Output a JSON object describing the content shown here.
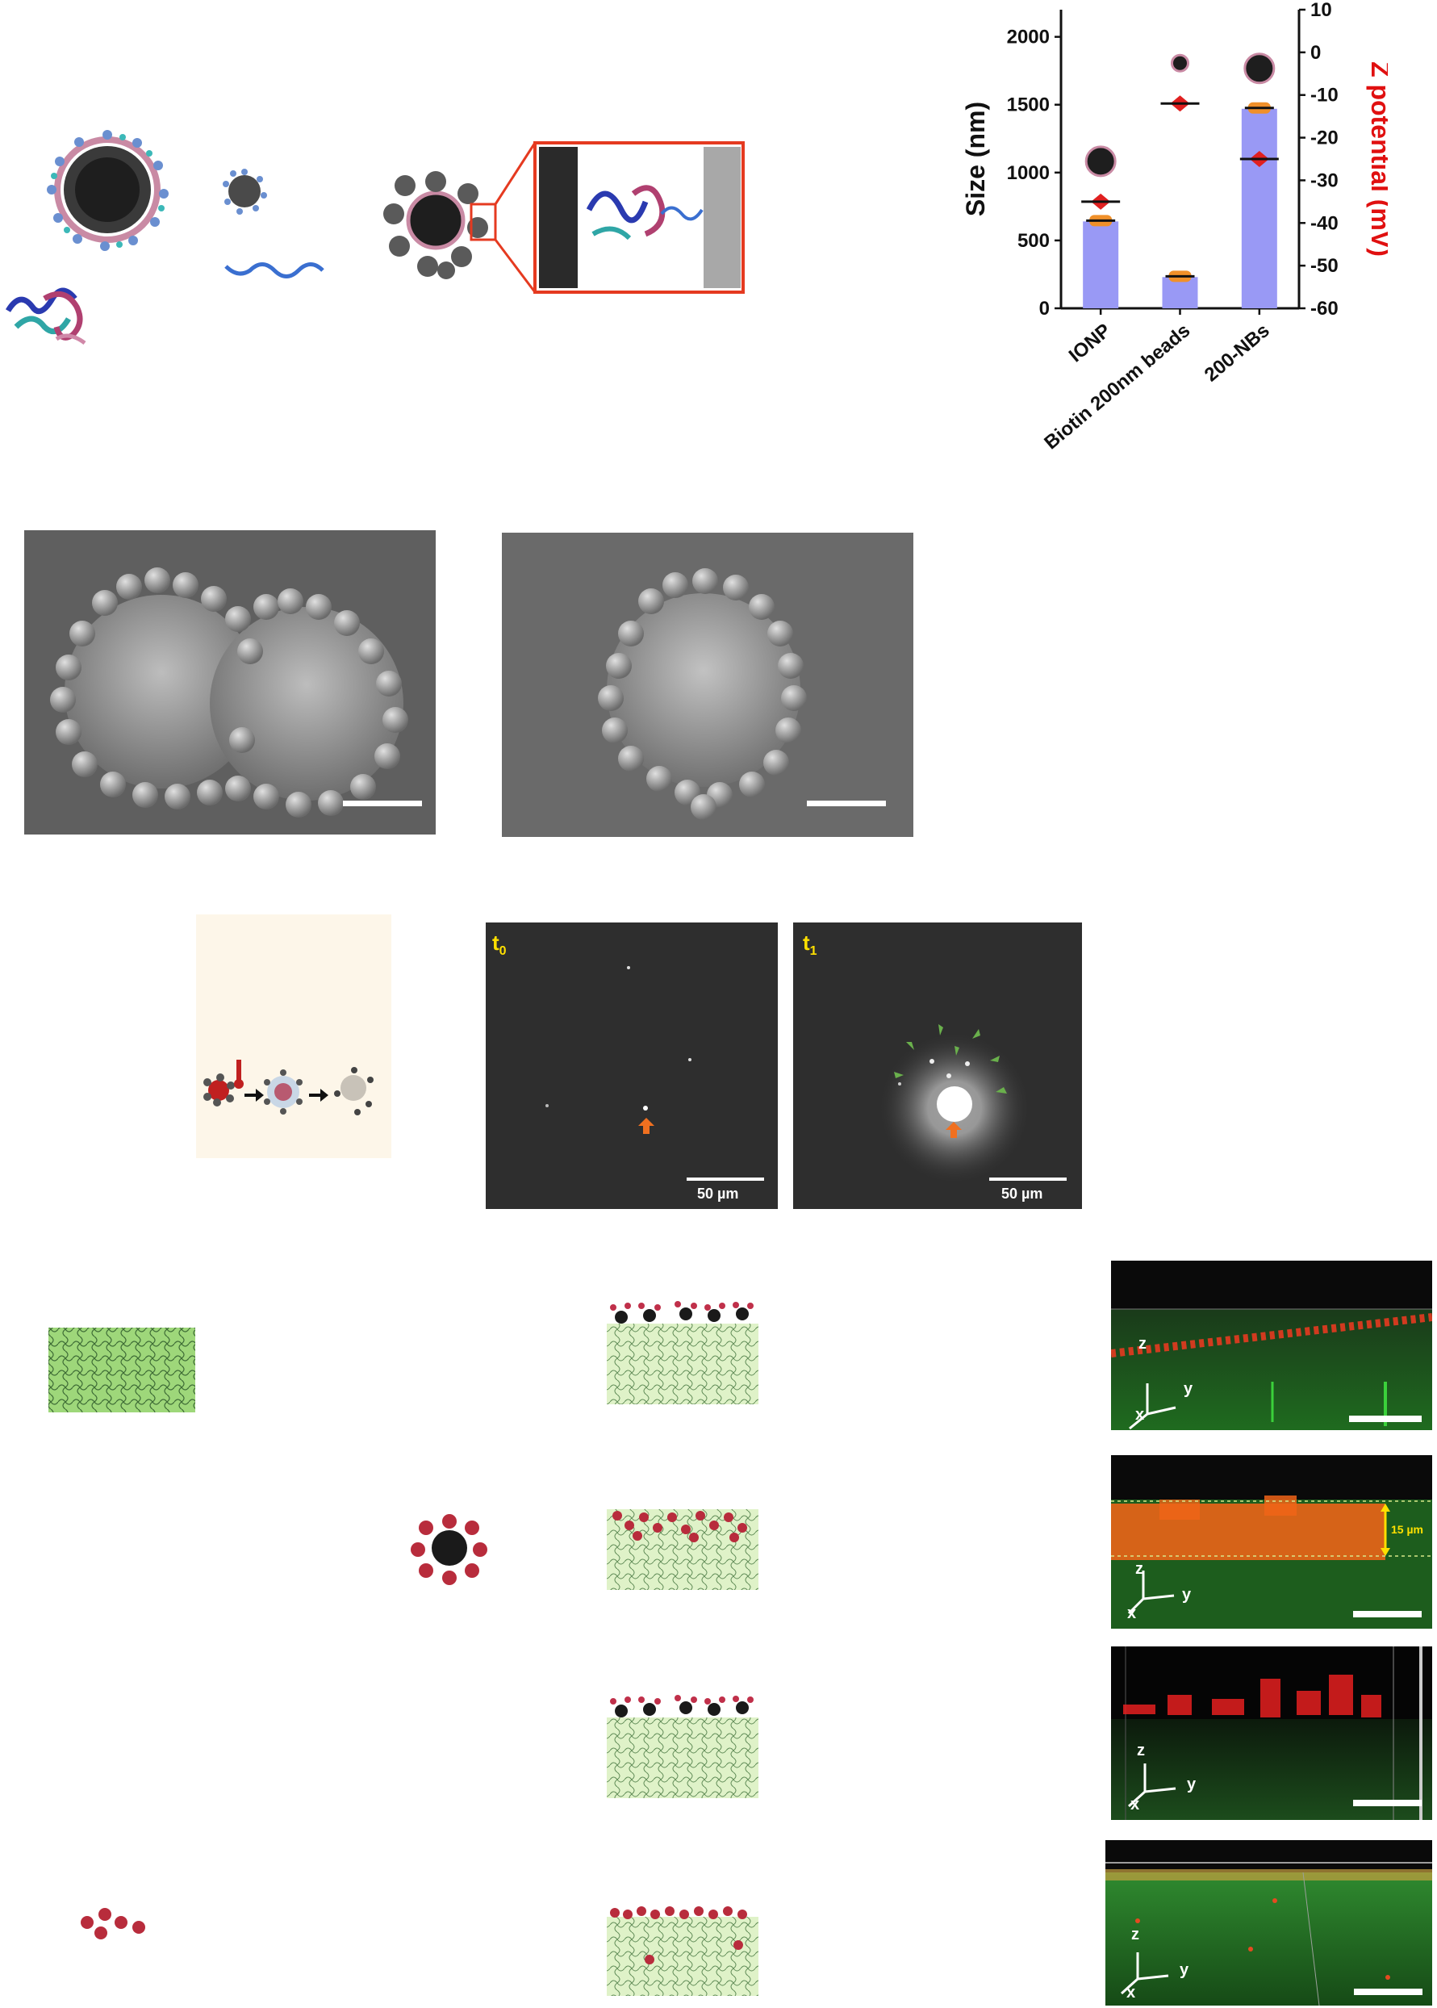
{
  "chart_data": {
    "type": "bar",
    "categories": [
      "IONP",
      "Biotin 200nm beads",
      "200-NBs"
    ],
    "values": [
      640,
      230,
      1470
    ],
    "zeta_values": [
      -35,
      -12,
      -25
    ],
    "ylabel": "Size (nm)",
    "y2label": "Z potential (mV)",
    "ylim": [
      0,
      2200
    ],
    "y2lim": [
      -60,
      10
    ],
    "yticks": [
      "0",
      "500",
      "1000",
      "1500",
      "2000"
    ],
    "y2ticks": [
      "10",
      "0",
      "-10",
      "-20",
      "-30",
      "-40",
      "-50",
      "-60"
    ],
    "colors": {
      "bar": "#9999f5",
      "size_marker": "#f0902a",
      "zeta_marker": "#e02020",
      "axis2": "#e01010"
    }
  },
  "microscopy": {
    "t0_label": "t",
    "t0_sub": "0",
    "t1_label": "t",
    "t1_sub": "1",
    "scale_label_t0": "50 µm",
    "scale_label_t1": "50 µm"
  },
  "confocal": {
    "axis_z": "z",
    "axis_y": "y",
    "axis_x": "x",
    "thickness_label": "15 µm"
  },
  "colors": {
    "accent_red": "#e53a20",
    "arrow_orange": "#f07020",
    "arrow_green": "#6ab04c",
    "label_yellow": "#ffe000"
  }
}
